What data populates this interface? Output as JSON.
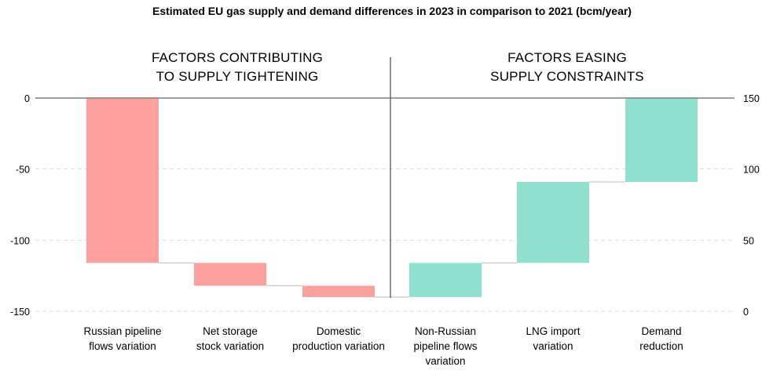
{
  "chart_data": {
    "type": "bar",
    "subtype": "waterfall",
    "title": "Estimated EU gas supply and demand differences in 2023 in comparison to 2021 (bcm/year)",
    "sections": [
      {
        "lines": [
          "FACTORS CONTRIBUTING",
          "TO SUPPLY TIGHTENING"
        ]
      },
      {
        "lines": [
          "FACTORS EASING",
          "SUPPLY CONSTRAINTS"
        ]
      }
    ],
    "left_axis": {
      "range": [
        -150,
        0
      ],
      "ticks": [
        0,
        -50,
        -100,
        -150
      ],
      "tick_labels": [
        "0",
        "-50",
        "-100",
        "-150"
      ]
    },
    "right_axis": {
      "range": [
        0,
        150
      ],
      "ticks": [
        150,
        100,
        50,
        0
      ],
      "tick_labels": [
        "150",
        "100",
        "50",
        "0"
      ]
    },
    "colors": {
      "negative": "#fca09e",
      "positive": "#8fe0cf",
      "connector": "#c8c8c8",
      "grid": "#d9d9d9",
      "axis": "#7f7f7f"
    },
    "categories": [
      {
        "lines": [
          "Russian pipeline",
          "flows variation"
        ],
        "start": 0,
        "end": -116,
        "type": "negative"
      },
      {
        "lines": [
          "Net storage",
          "stock variation"
        ],
        "start": -116,
        "end": -132,
        "type": "negative"
      },
      {
        "lines": [
          "Domestic",
          "production variation"
        ],
        "start": -132,
        "end": -140,
        "type": "negative"
      },
      {
        "lines": [
          "Non-Russian",
          "pipeline flows",
          "variation"
        ],
        "start": -140,
        "end": -116,
        "type": "positive"
      },
      {
        "lines": [
          "LNG import",
          "variation"
        ],
        "start": -116,
        "end": -59,
        "type": "positive"
      },
      {
        "lines": [
          "Demand",
          "reduction"
        ],
        "start": -59,
        "end": 0,
        "type": "positive"
      }
    ]
  }
}
